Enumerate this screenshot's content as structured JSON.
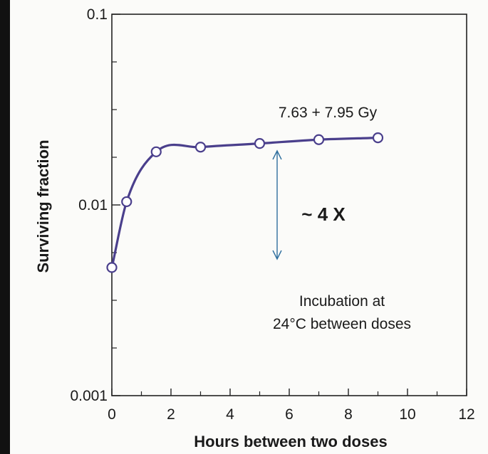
{
  "chart_data": {
    "type": "line",
    "title": "",
    "xlabel": "Hours between two doses",
    "ylabel": "Surviving fraction",
    "xlim": [
      0,
      12
    ],
    "ylim": [
      0.001,
      0.1
    ],
    "yscale": "log",
    "grid": false,
    "x_ticks": [
      0,
      2,
      4,
      6,
      8,
      10,
      12
    ],
    "y_tick_labels": [
      "0.1",
      "0.01",
      "0.001"
    ],
    "series": [
      {
        "x": [
          0,
          0.5,
          1.5,
          3,
          5,
          7,
          9
        ],
        "y": [
          0.0047,
          0.0104,
          0.019,
          0.0201,
          0.021,
          0.022,
          0.0225
        ]
      }
    ],
    "colors": {
      "line": "#4a3f8c",
      "arrow": "#2f6f9e",
      "marker_fill": "#ffffff"
    },
    "annotations": {
      "dose_label": "7.63 + 7.95 Gy",
      "ratio_label": "~ 4 X",
      "incubation_line1": "Incubation at",
      "incubation_line2": "24°C between doses"
    }
  }
}
